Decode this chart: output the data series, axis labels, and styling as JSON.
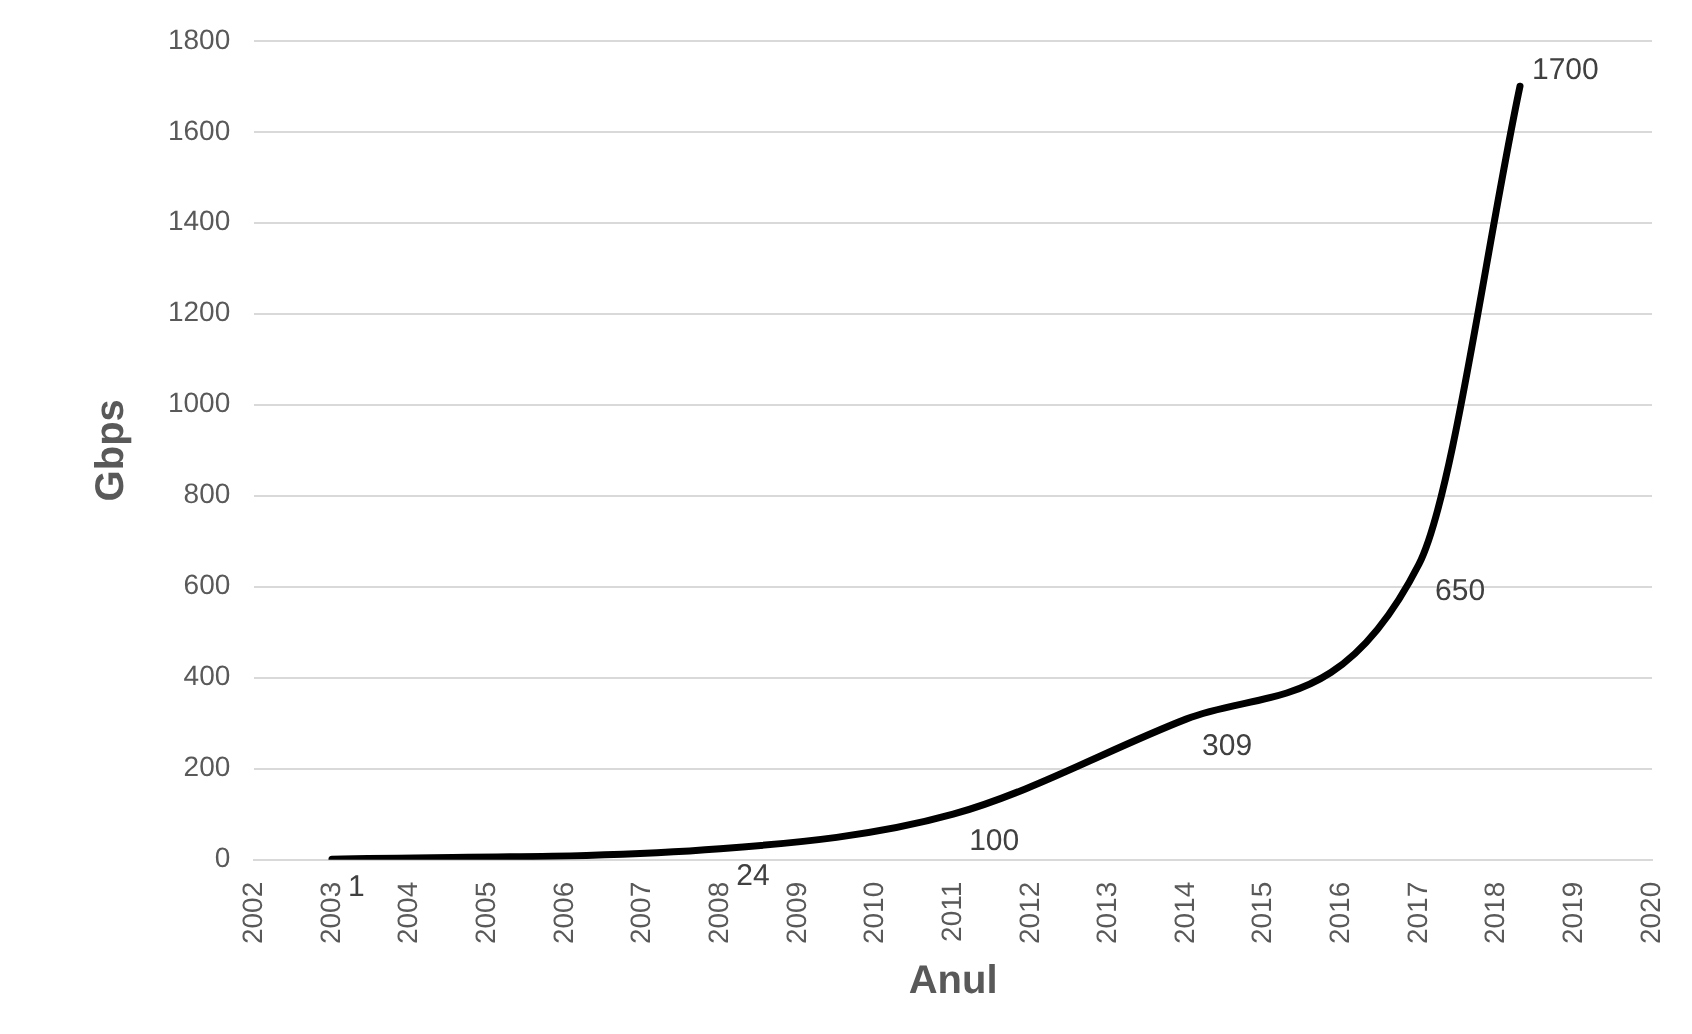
{
  "chart_data": {
    "type": "line",
    "xlabel": "Anul",
    "ylabel": "Gbps",
    "x": [
      2003,
      2008,
      2011,
      2014,
      2017,
      2018.3
    ],
    "series": [
      {
        "color": "#000000",
        "values": [
          1,
          24,
          100,
          309,
          650,
          1700
        ]
      }
    ],
    "xlim": [
      2002,
      2020
    ],
    "xticks": [
      2002,
      2003,
      2004,
      2005,
      2006,
      2007,
      2008,
      2009,
      2010,
      2011,
      2012,
      2013,
      2014,
      2015,
      2016,
      2017,
      2018,
      2019,
      2020
    ],
    "ylim": [
      0,
      1800
    ],
    "yticks": [
      0,
      200,
      400,
      600,
      800,
      1000,
      1200,
      1400,
      1600,
      1800
    ],
    "grid": "y",
    "marker": "none",
    "line_style": "solid",
    "data_labels": true,
    "legend": false
  }
}
